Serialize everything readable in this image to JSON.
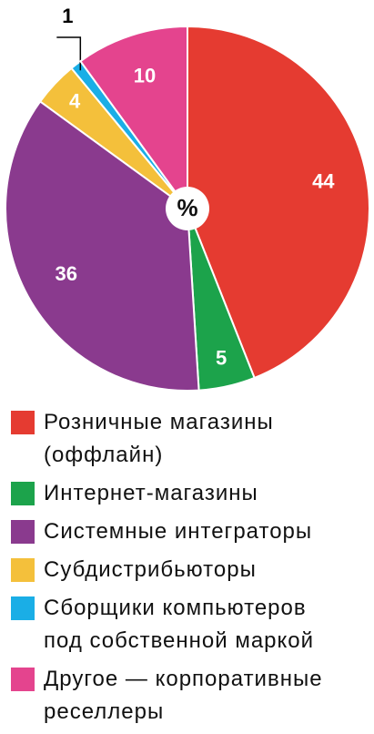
{
  "chart_data": {
    "type": "pie",
    "center_label": "%",
    "categories": [
      "Розничные магазины (оффлайн)",
      "Интернет-магазины",
      "Системные интеграторы",
      "Субдистрибьюторы",
      "Сборщики компьютеров под собственной маркой",
      "Другое — корпоративные реселлеры"
    ],
    "values": [
      44,
      5,
      36,
      4,
      1,
      10
    ],
    "colors": [
      "#e53b31",
      "#1ca34b",
      "#8a3a8e",
      "#f4c03b",
      "#1aaee6",
      "#e4448e"
    ]
  }
}
